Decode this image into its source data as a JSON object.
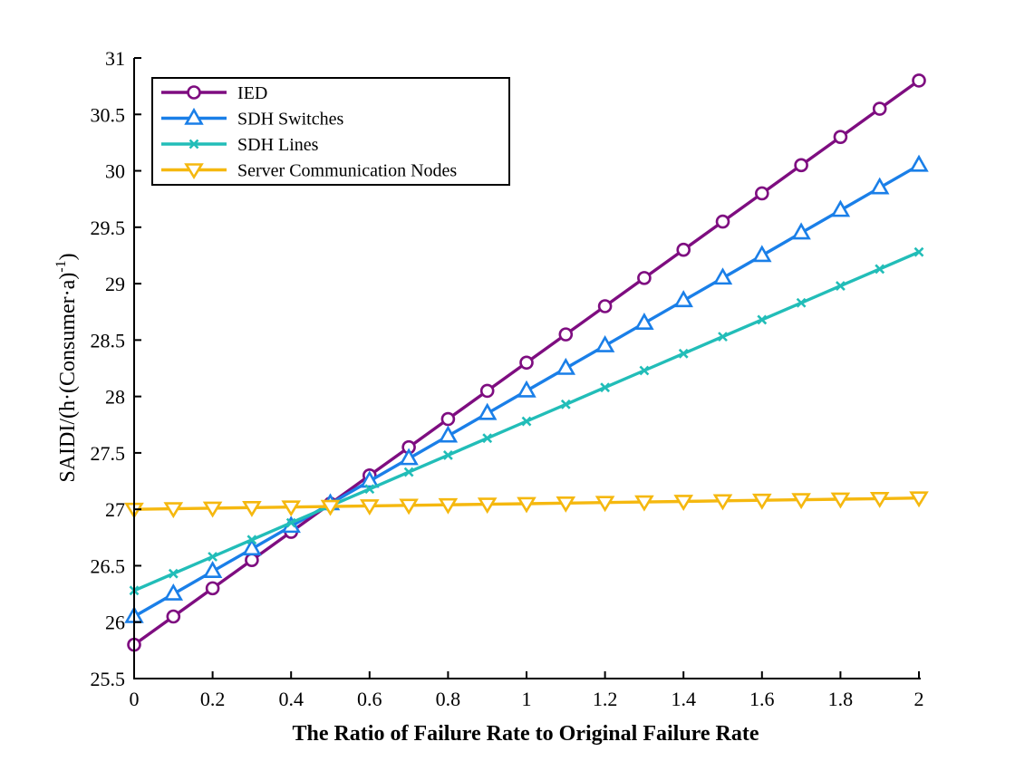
{
  "chart_data": {
    "type": "line",
    "xlabel": "The Ratio of Failure Rate to Original Failure Rate",
    "ylabel": "SAIDI/(h·(Consumer·a)",
    "ylabel_superscript": "-1",
    "ylabel_close": ")",
    "xlim": [
      0,
      2
    ],
    "ylim": [
      25.5,
      31
    ],
    "xticks": [
      "0",
      "0.2",
      "0.4",
      "0.6",
      "0.8",
      "1",
      "1.2",
      "1.4",
      "1.6",
      "1.8",
      "2"
    ],
    "yticks": [
      "25.5",
      "26",
      "26.5",
      "27",
      "27.5",
      "28",
      "28.5",
      "29",
      "29.5",
      "30",
      "30.5",
      "31"
    ],
    "grid": false,
    "legend_position": "top-left",
    "x": [
      0,
      0.1,
      0.2,
      0.3,
      0.4,
      0.5,
      0.6,
      0.7,
      0.8,
      0.9,
      1.0,
      1.1,
      1.2,
      1.3,
      1.4,
      1.5,
      1.6,
      1.7,
      1.8,
      1.9,
      2.0
    ],
    "series": [
      {
        "name": "IED",
        "color": "#7e0d80",
        "marker": "circle",
        "values": [
          25.8,
          26.05,
          26.3,
          26.55,
          26.8,
          27.05,
          27.3,
          27.55,
          27.8,
          28.05,
          28.3,
          28.55,
          28.8,
          29.05,
          29.3,
          29.55,
          29.8,
          30.05,
          30.3,
          30.55,
          30.8
        ]
      },
      {
        "name": "SDH Switches",
        "color": "#1a7fe8",
        "marker": "triangle-up",
        "values": [
          26.05,
          26.25,
          26.45,
          26.65,
          26.85,
          27.05,
          27.25,
          27.45,
          27.65,
          27.85,
          28.05,
          28.25,
          28.45,
          28.65,
          28.85,
          29.05,
          29.25,
          29.45,
          29.65,
          29.85,
          30.05
        ]
      },
      {
        "name": "SDH Lines",
        "color": "#22bdb8",
        "marker": "x",
        "values": [
          26.28,
          26.43,
          26.58,
          26.73,
          26.88,
          27.03,
          27.18,
          27.33,
          27.48,
          27.63,
          27.78,
          27.93,
          28.08,
          28.23,
          28.38,
          28.53,
          28.68,
          28.83,
          28.98,
          29.13,
          29.28
        ]
      },
      {
        "name": "Server Communication Nodes",
        "color": "#f5b80f",
        "marker": "triangle-down",
        "values": [
          27.0,
          27.005,
          27.01,
          27.015,
          27.02,
          27.025,
          27.03,
          27.035,
          27.04,
          27.045,
          27.05,
          27.055,
          27.06,
          27.065,
          27.07,
          27.075,
          27.08,
          27.085,
          27.09,
          27.095,
          27.1
        ]
      }
    ]
  }
}
